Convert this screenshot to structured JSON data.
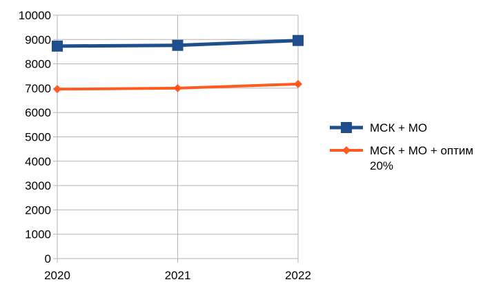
{
  "chart_data": {
    "type": "line",
    "categories": [
      "2020",
      "2021",
      "2022"
    ],
    "series": [
      {
        "name": "МСК + МО",
        "values": [
          8730,
          8760,
          8960
        ],
        "color": "#1f4e8c",
        "marker": "square"
      },
      {
        "name": "МСК + МО + оптим 20%",
        "name_lines": [
          "МСК + МО + оптим",
          "20%"
        ],
        "values": [
          6960,
          7000,
          7170
        ],
        "color": "#ff5a1f",
        "marker": "diamond"
      }
    ],
    "y_ticks": [
      "0",
      "1000",
      "2000",
      "3000",
      "4000",
      "5000",
      "6000",
      "7000",
      "8000",
      "9000",
      "10000"
    ],
    "ylim": [
      0,
      10000
    ],
    "grid": "horizontal",
    "legend_position": "right",
    "title": "",
    "xlabel": "",
    "ylabel": ""
  }
}
